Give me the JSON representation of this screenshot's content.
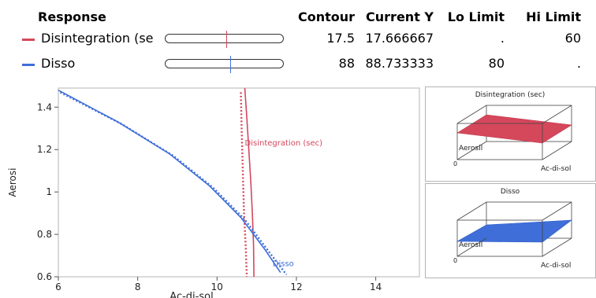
{
  "table": {
    "headers": {
      "response": "Response",
      "contour": "Contour",
      "current_y": "Current Y",
      "lo_limit": "Lo Limit",
      "hi_limit": "Hi Limit"
    },
    "rows": [
      {
        "name": "Disintegration (se",
        "color": "#d5475b",
        "contour": "17.5",
        "current_y": "17.666667",
        "lo_limit": ".",
        "hi_limit": "60",
        "slider_position": 0.52
      },
      {
        "name": "Disso",
        "color": "#3f6ed8",
        "contour": "88",
        "current_y": "88.733333",
        "lo_limit": "80",
        "hi_limit": ".",
        "slider_position": 0.55
      }
    ]
  },
  "chart_data": {
    "type": "line",
    "xlabel": "Ac-di-sol",
    "ylabel": "Aerosi",
    "xlim": [
      6,
      15.1
    ],
    "ylim": [
      0.6,
      1.49
    ],
    "x_ticks": [
      "6",
      "8",
      "10",
      "12",
      "14"
    ],
    "y_ticks": [
      "0.6",
      "0.8",
      "1",
      "1.2",
      "1.4"
    ],
    "x_tick_values": [
      6,
      8,
      10,
      12,
      14
    ],
    "y_tick_values": [
      0.6,
      0.8,
      1.0,
      1.2,
      1.4
    ],
    "series": [
      {
        "name": "Disintegration (sec)",
        "color": "#d5475b",
        "style": "solid",
        "label_at": [
          10.7,
          1.22
        ],
        "points": [
          [
            10.7,
            1.49
          ],
          [
            10.75,
            1.35
          ],
          [
            10.8,
            1.2
          ],
          [
            10.85,
            1.05
          ],
          [
            10.89,
            0.9
          ],
          [
            10.92,
            0.75
          ],
          [
            10.93,
            0.6
          ]
        ]
      },
      {
        "color": "#d5475b",
        "style": "dotted",
        "points": [
          [
            10.6,
            1.47
          ],
          [
            10.62,
            1.3
          ],
          [
            10.65,
            1.1
          ],
          [
            10.68,
            0.9
          ],
          [
            10.72,
            0.75
          ],
          [
            10.75,
            0.6
          ]
        ]
      },
      {
        "name": "Disso",
        "color": "#3f6ed8",
        "style": "solid",
        "label_at": [
          11.4,
          0.65
        ],
        "points": [
          [
            6.0,
            1.48
          ],
          [
            7.5,
            1.33
          ],
          [
            8.8,
            1.18
          ],
          [
            9.8,
            1.03
          ],
          [
            10.6,
            0.88
          ],
          [
            11.2,
            0.73
          ],
          [
            11.6,
            0.62
          ]
        ]
      },
      {
        "color": "#3f6ed8",
        "style": "dotted",
        "points": [
          [
            6.05,
            1.47
          ],
          [
            7.6,
            1.32
          ],
          [
            8.9,
            1.17
          ],
          [
            9.9,
            1.02
          ],
          [
            10.7,
            0.87
          ],
          [
            11.3,
            0.72
          ],
          [
            11.75,
            0.61
          ]
        ]
      }
    ]
  },
  "surfaces": [
    {
      "title": "Disintegration (sec)",
      "x_label": "Ac-di-sol",
      "y_label": "Aerosil",
      "zero_label": "0",
      "color": "#d5475b"
    },
    {
      "title": "Disso",
      "x_label": "Ac-di-sol",
      "y_label": "Aerosil",
      "zero_label": "0",
      "color": "#3f6ed8"
    }
  ]
}
